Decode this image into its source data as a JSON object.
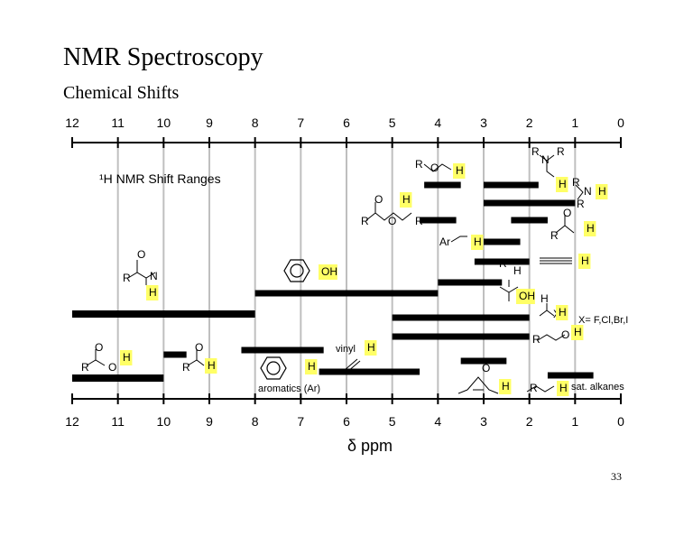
{
  "slide": {
    "title": "NMR Spectroscopy",
    "subtitle": "Chemical  Shifts",
    "page_number": "33"
  },
  "chart_data": {
    "type": "range-chart",
    "title": "¹H NMR Shift Ranges",
    "xlabel": "δ  ppm",
    "xlim": [
      12,
      0
    ],
    "ticks": [
      12,
      11,
      10,
      9,
      8,
      7,
      6,
      5,
      4,
      3,
      2,
      1,
      0
    ],
    "ranges": [
      {
        "from": 4.3,
        "to": 3.5
      },
      {
        "from": 3.0,
        "to": 1.8
      },
      {
        "from": 3.0,
        "to": 1.0
      },
      {
        "from": 4.4,
        "to": 3.6
      },
      {
        "from": 2.4,
        "to": 1.6
      },
      {
        "from": 3.0,
        "to": 2.2
      },
      {
        "from": 3.2,
        "to": 2.0
      },
      {
        "from": 4.0,
        "to": 2.6
      },
      {
        "from": 8.0,
        "to": 4.0
      },
      {
        "from": 12.0,
        "to": 8.0
      },
      {
        "from": 5.0,
        "to": 2.0
      },
      {
        "from": 5.0,
        "to": 2.0
      },
      {
        "from": 10.0,
        "to": 9.5
      },
      {
        "from": 8.3,
        "to": 6.5
      },
      {
        "from": 3.5,
        "to": 2.5
      },
      {
        "from": 6.6,
        "to": 4.4
      },
      {
        "from": 1.6,
        "to": 0.6
      },
      {
        "from": 12.0,
        "to": 10.0
      }
    ],
    "structure_labels": [
      "R",
      "O",
      "H",
      "N",
      "R",
      "R",
      "H",
      "R",
      "N",
      "H",
      "R",
      "O",
      "H",
      "R",
      "O",
      "R",
      "O",
      "R",
      "H",
      "Ar",
      "H",
      "R",
      "H",
      "O",
      "R",
      "N",
      "H",
      "OH",
      "H",
      "OH",
      "H",
      "X",
      "X= F,Cl,Br,I",
      "H",
      "R",
      "O",
      "H",
      "O",
      "R",
      "O",
      "H",
      "O",
      "R",
      "H",
      "vinyl",
      "H",
      "H",
      "aromatics (Ar)",
      "O",
      "H",
      "R",
      "H",
      "sat. alkanes"
    ],
    "highlight_color": "#ffff66",
    "bar_color": "#000000",
    "grid_color": "#bfbfbf"
  }
}
